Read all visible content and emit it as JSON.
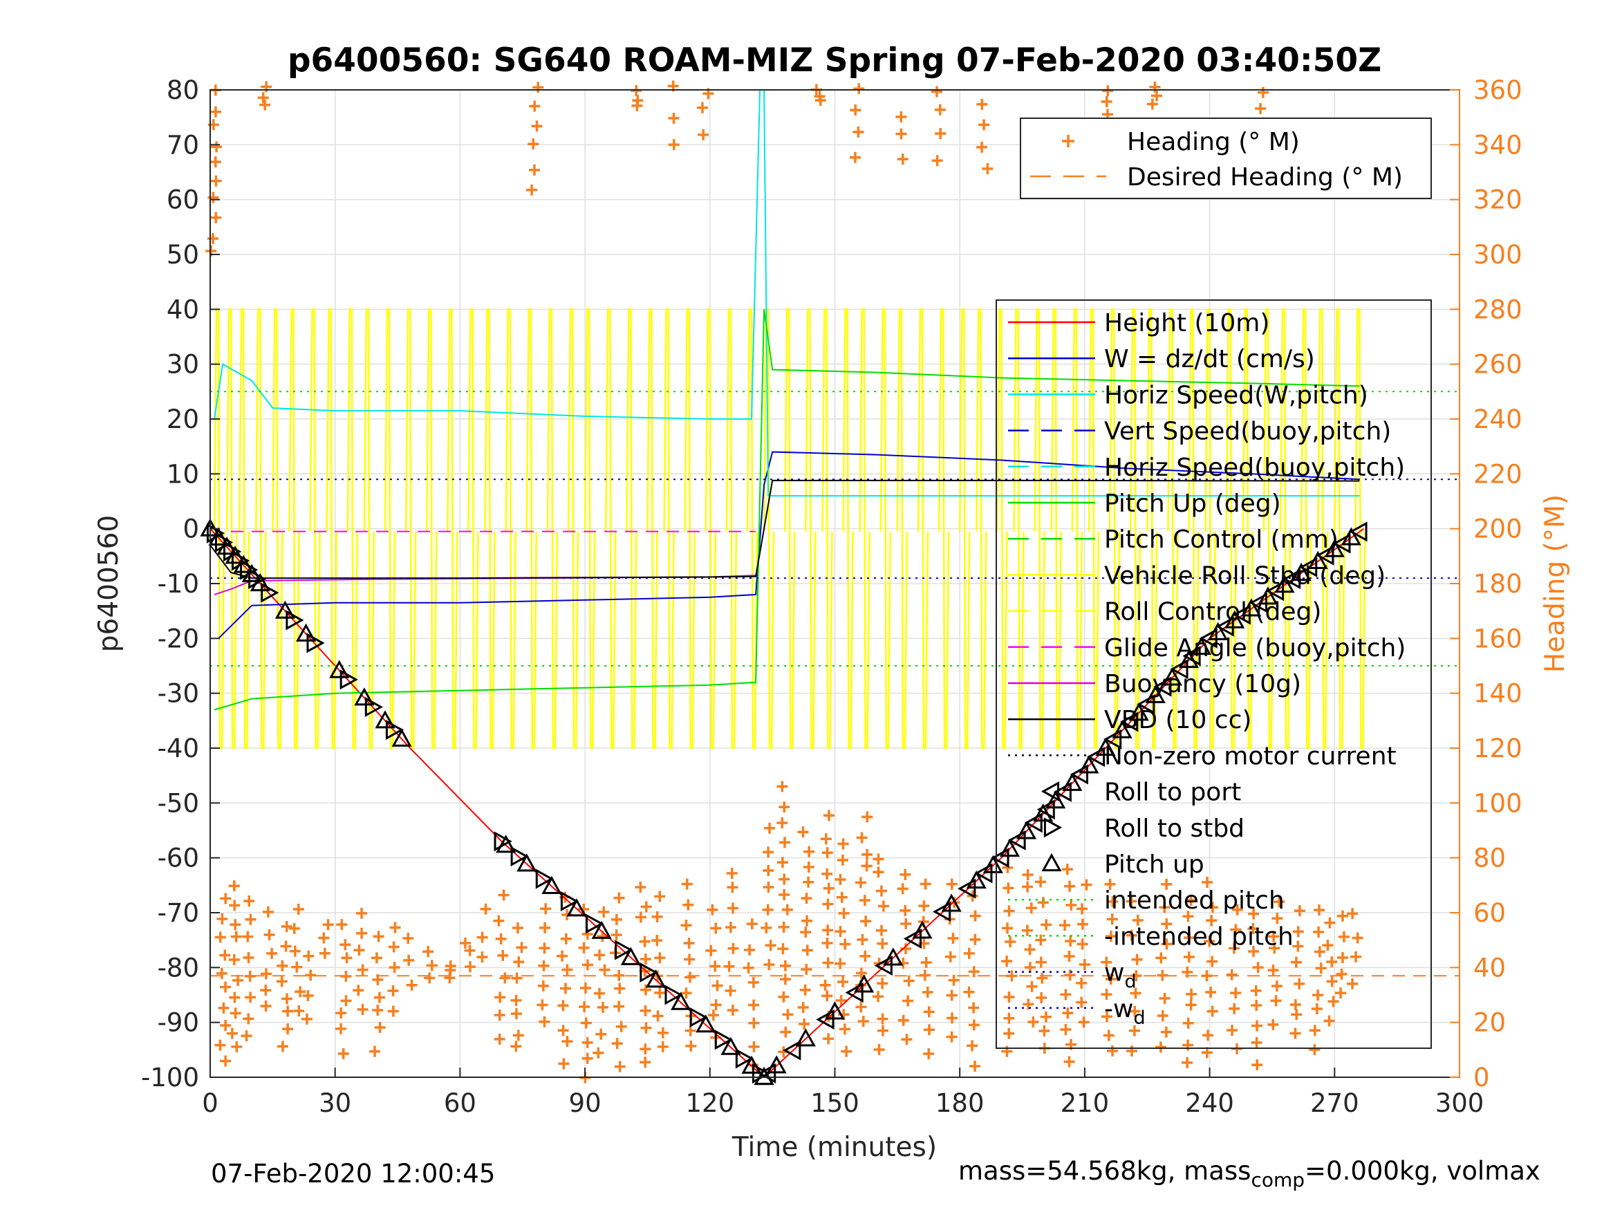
{
  "chart_data": {
    "type": "line",
    "title": "p6400560: SG640 ROAM-MIZ Spring 07-Feb-2020 03:40:50Z",
    "xlabel": "Time (minutes)",
    "ylabel_left": "p6400560",
    "ylabel_right": "Heading (°M)",
    "xlim": [
      0,
      300
    ],
    "ylim_left": [
      -100,
      80
    ],
    "ylim_right": [
      0,
      360
    ],
    "x_ticks": [
      "0",
      "30",
      "60",
      "90",
      "120",
      "150",
      "180",
      "210",
      "240",
      "270",
      "300"
    ],
    "y_ticks_left": [
      "80",
      "70",
      "60",
      "50",
      "40",
      "30",
      "20",
      "10",
      "0",
      "-10",
      "-20",
      "-30",
      "-40",
      "-50",
      "-60",
      "-70",
      "-80",
      "-90",
      "-100"
    ],
    "y_ticks_right": [
      "360",
      "340",
      "320",
      "300",
      "280",
      "260",
      "240",
      "220",
      "200",
      "180",
      "160",
      "140",
      "120",
      "100",
      "80",
      "60",
      "40",
      "20",
      "0"
    ],
    "grid": true,
    "legend_top": {
      "placement": "top-right",
      "entries": [
        {
          "label": "Heading (° M)",
          "color": "#f77f1e",
          "style": "plus"
        },
        {
          "label": "Desired Heading (° M)",
          "color": "#f77f1e",
          "style": "dash"
        }
      ]
    },
    "legend_main": {
      "placement": "right",
      "entries": [
        {
          "label": "Height (10m)",
          "color": "#ff0000",
          "style": "solid"
        },
        {
          "label": "W = dz/dt (cm/s)",
          "color": "#0000c8",
          "style": "solid"
        },
        {
          "label": "Horiz Speed(W,pitch)",
          "color": "#00e6e6",
          "style": "solid"
        },
        {
          "label": "Vert Speed(buoy,pitch)",
          "color": "#0000c8",
          "style": "dash"
        },
        {
          "label": "Horiz Speed(buoy,pitch)",
          "color": "#00e6e6",
          "style": "dash"
        },
        {
          "label": "Pitch Up (deg)",
          "color": "#00dd00",
          "style": "solid"
        },
        {
          "label": "Pitch Control (mm)",
          "color": "#00dd00",
          "style": "dash"
        },
        {
          "label": "Vehicle Roll Stbd (deg)",
          "color": "#ffff00",
          "style": "solid"
        },
        {
          "label": "Roll Control (deg)",
          "color": "#ffff00",
          "style": "dash"
        },
        {
          "label": "Glide Angle (buoy,pitch)",
          "color": "#ff00ff",
          "style": "dash"
        },
        {
          "label": "Buoyancy (10g)",
          "color": "#dd00dd",
          "style": "solid"
        },
        {
          "label": "VBD (10 cc)",
          "color": "#000000",
          "style": "solid"
        },
        {
          "label": "Non-zero motor current",
          "color": "#000000",
          "style": "dot"
        },
        {
          "label": "Roll to port",
          "color": "#000000",
          "style": "tri-left"
        },
        {
          "label": "Roll to stbd",
          "color": "#000000",
          "style": "tri-right"
        },
        {
          "label": "Pitch up",
          "color": "#000000",
          "style": "tri-up"
        },
        {
          "label": "intended pitch",
          "color": "#00dd00",
          "style": "dot"
        },
        {
          "label": "-intended pitch",
          "color": "#00dd00",
          "style": "dot"
        },
        {
          "label": "w",
          "sub": "d",
          "color": "#0000c8",
          "style": "dot"
        },
        {
          "label": "-w",
          "sub": "d",
          "color": "#0000c8",
          "style": "dot"
        }
      ]
    },
    "series": [
      {
        "name": "Height (10m)",
        "color": "#ff0000",
        "x": [
          0,
          48,
          70,
          133,
          190,
          240,
          277
        ],
        "y": [
          0,
          -40,
          -57,
          -100,
          -60,
          -20,
          0
        ]
      },
      {
        "name": "W = dz/dt (cm/s)",
        "color": "#0000c8",
        "x": [
          2,
          10,
          30,
          60,
          90,
          120,
          131,
          133,
          135,
          160,
          190,
          220,
          250,
          276
        ],
        "y": [
          -20,
          -14,
          -13.5,
          -13.5,
          -13,
          -12.5,
          -12,
          8,
          14,
          13.5,
          12.5,
          11,
          10,
          9
        ]
      },
      {
        "name": "Horiz Speed(W,pitch)",
        "color": "#00e6e6",
        "x": [
          1,
          3,
          10,
          15,
          30,
          60,
          90,
          120,
          130,
          132,
          133,
          134,
          140,
          276
        ],
        "y": [
          20,
          30,
          27,
          22,
          21.5,
          21.5,
          20.5,
          20,
          20,
          80,
          80,
          6,
          6,
          6
        ]
      },
      {
        "name": "Pitch Up (deg)",
        "color": "#00dd00",
        "x": [
          1,
          10,
          30,
          60,
          90,
          120,
          131,
          133,
          135,
          160,
          190,
          220,
          250,
          276
        ],
        "y": [
          -33,
          -31,
          -30,
          -29.5,
          -29,
          -28.5,
          -28,
          40,
          29,
          28.5,
          27.5,
          27,
          26.5,
          26
        ]
      },
      {
        "name": "Buoyancy (10g)",
        "color": "#dd00dd",
        "x": [
          1,
          5,
          10,
          40,
          80,
          120,
          131
        ],
        "y": [
          -12,
          -11,
          -9.5,
          -9.2,
          -9,
          -8.8,
          -8.5
        ]
      },
      {
        "name": "VBD (10 cc)",
        "color": "#000000",
        "x": [
          0,
          5,
          10,
          60,
          120,
          131,
          133,
          135,
          200,
          276
        ],
        "y": [
          -3,
          -8,
          -9,
          -9,
          -8.8,
          -8.7,
          0,
          8.8,
          8.8,
          8.7
        ]
      },
      {
        "name": "Glide Angle (buoy,pitch)",
        "color": "#ff00ff",
        "x": [
          5,
          131
        ],
        "y": [
          -0.5,
          -0.5
        ]
      },
      {
        "name": "intended pitch",
        "color": "#00dd00",
        "x": [
          0,
          300
        ],
        "y": [
          25,
          25
        ]
      },
      {
        "name": "-intended pitch",
        "color": "#00dd00",
        "x": [
          0,
          300
        ],
        "y": [
          -25,
          -25
        ]
      },
      {
        "name": "w_d",
        "color": "#0000c8",
        "x": [
          0,
          300
        ],
        "y": [
          9,
          9
        ]
      },
      {
        "name": "-w_d",
        "color": "#0000c8",
        "x": [
          0,
          300
        ],
        "y": [
          -9,
          -9
        ]
      },
      {
        "name": "Desired Heading (° M)",
        "color": "#f77f1e",
        "axis": "right",
        "x": [
          0,
          300
        ],
        "y": [
          37,
          37
        ]
      }
    ],
    "heading_clusters": [
      {
        "t": 1,
        "lo": 300,
        "hi": 360
      },
      {
        "t": 3,
        "lo": 5,
        "hi": 65
      },
      {
        "t": 6,
        "lo": 10,
        "hi": 70
      },
      {
        "t": 9,
        "lo": 15,
        "hi": 65
      },
      {
        "t": 13,
        "lo": 355,
        "hi": 360
      },
      {
        "t": 14,
        "lo": 25,
        "hi": 60
      },
      {
        "t": 18,
        "lo": 10,
        "hi": 55
      },
      {
        "t": 21,
        "lo": 25,
        "hi": 60
      },
      {
        "t": 24,
        "lo": 20,
        "hi": 45
      },
      {
        "t": 28,
        "lo": 45,
        "hi": 55
      },
      {
        "t": 32,
        "lo": 10,
        "hi": 55
      },
      {
        "t": 36,
        "lo": 25,
        "hi": 60
      },
      {
        "t": 40,
        "lo": 10,
        "hi": 50
      },
      {
        "t": 44,
        "lo": 25,
        "hi": 55
      },
      {
        "t": 48,
        "lo": 35,
        "hi": 50
      },
      {
        "t": 53,
        "lo": 37,
        "hi": 45
      },
      {
        "t": 57,
        "lo": 35,
        "hi": 42
      },
      {
        "t": 62,
        "lo": 40,
        "hi": 50
      },
      {
        "t": 66,
        "lo": 45,
        "hi": 60
      },
      {
        "t": 70,
        "lo": 15,
        "hi": 65
      },
      {
        "t": 74,
        "lo": 10,
        "hi": 55
      },
      {
        "t": 78,
        "lo": 325,
        "hi": 360
      },
      {
        "t": 80,
        "lo": 20,
        "hi": 60
      },
      {
        "t": 85,
        "lo": 5,
        "hi": 65
      },
      {
        "t": 90,
        "lo": 0,
        "hi": 60
      },
      {
        "t": 94,
        "lo": 10,
        "hi": 60
      },
      {
        "t": 98,
        "lo": 5,
        "hi": 65
      },
      {
        "t": 102,
        "lo": 355,
        "hi": 360
      },
      {
        "t": 104,
        "lo": 5,
        "hi": 70
      },
      {
        "t": 108,
        "lo": 10,
        "hi": 65
      },
      {
        "t": 111,
        "lo": 340,
        "hi": 360
      },
      {
        "t": 115,
        "lo": 10,
        "hi": 70
      },
      {
        "t": 119,
        "lo": 345,
        "hi": 360
      },
      {
        "t": 121,
        "lo": 15,
        "hi": 60
      },
      {
        "t": 125,
        "lo": 25,
        "hi": 75
      },
      {
        "t": 130,
        "lo": 5,
        "hi": 55
      },
      {
        "t": 134,
        "lo": 40,
        "hi": 90
      },
      {
        "t": 138,
        "lo": 10,
        "hi": 105
      },
      {
        "t": 143,
        "lo": 20,
        "hi": 90
      },
      {
        "t": 146,
        "lo": 355,
        "hi": 360
      },
      {
        "t": 148,
        "lo": 15,
        "hi": 95
      },
      {
        "t": 152,
        "lo": 10,
        "hi": 85
      },
      {
        "t": 155,
        "lo": 335,
        "hi": 360
      },
      {
        "t": 157,
        "lo": 20,
        "hi": 95
      },
      {
        "t": 161,
        "lo": 10,
        "hi": 80
      },
      {
        "t": 166,
        "lo": 335,
        "hi": 350
      },
      {
        "t": 167,
        "lo": 15,
        "hi": 75
      },
      {
        "t": 172,
        "lo": 10,
        "hi": 70
      },
      {
        "t": 175,
        "lo": 335,
        "hi": 360
      },
      {
        "t": 178,
        "lo": 15,
        "hi": 70
      },
      {
        "t": 183,
        "lo": 5,
        "hi": 65
      },
      {
        "t": 186,
        "lo": 330,
        "hi": 355
      },
      {
        "t": 192,
        "lo": 10,
        "hi": 75
      },
      {
        "t": 197,
        "lo": 20,
        "hi": 75
      },
      {
        "t": 200,
        "lo": 10,
        "hi": 70
      },
      {
        "t": 206,
        "lo": 5,
        "hi": 75
      },
      {
        "t": 210,
        "lo": 20,
        "hi": 70
      },
      {
        "t": 215,
        "lo": 350,
        "hi": 360
      },
      {
        "t": 216,
        "lo": 10,
        "hi": 70
      },
      {
        "t": 222,
        "lo": 10,
        "hi": 65
      },
      {
        "t": 227,
        "lo": 355,
        "hi": 360
      },
      {
        "t": 229,
        "lo": 10,
        "hi": 70
      },
      {
        "t": 235,
        "lo": 5,
        "hi": 65
      },
      {
        "t": 240,
        "lo": 10,
        "hi": 70
      },
      {
        "t": 246,
        "lo": 10,
        "hi": 60
      },
      {
        "t": 251,
        "lo": 5,
        "hi": 60
      },
      {
        "t": 253,
        "lo": 330,
        "hi": 360
      },
      {
        "t": 256,
        "lo": 20,
        "hi": 65
      },
      {
        "t": 261,
        "lo": 15,
        "hi": 60
      },
      {
        "t": 266,
        "lo": 10,
        "hi": 60
      },
      {
        "t": 269,
        "lo": 20,
        "hi": 55
      },
      {
        "t": 272,
        "lo": 30,
        "hi": 60
      },
      {
        "t": 275,
        "lo": 35,
        "hi": 60
      }
    ],
    "roll_spikes_x": [
      2,
      5,
      8,
      12,
      16,
      20,
      25,
      29,
      34,
      38,
      43,
      48,
      53,
      58,
      63,
      67,
      72,
      77,
      82,
      87,
      91,
      96,
      101,
      106,
      110,
      115,
      120,
      125,
      130,
      134,
      139,
      144,
      148,
      153,
      157,
      162,
      166,
      171,
      176,
      181,
      185,
      190,
      194,
      199,
      203,
      208,
      212,
      217,
      222,
      226,
      231,
      236,
      240,
      245,
      249,
      254,
      258,
      263,
      267,
      271,
      276
    ],
    "markers": {
      "descent_t": [
        0,
        1,
        2,
        3,
        4,
        5,
        6,
        7,
        8,
        9,
        10,
        11,
        12,
        14,
        18,
        20,
        23,
        25,
        31,
        33,
        37,
        39,
        42,
        44,
        46,
        70,
        71,
        74,
        76,
        80,
        82,
        86,
        88,
        92,
        94,
        99,
        101,
        105,
        107,
        111,
        113,
        117,
        119,
        123,
        125,
        128,
        130,
        132,
        133
      ],
      "ascent_t": [
        133,
        134,
        136,
        140,
        143,
        148,
        150,
        155,
        157,
        162,
        164,
        169,
        171,
        176,
        178,
        182,
        184,
        186,
        188,
        190,
        192,
        194,
        196,
        198,
        200,
        201,
        203,
        205,
        207,
        209,
        211,
        213,
        215,
        217,
        219,
        221,
        223,
        225,
        227,
        229,
        231,
        233,
        235,
        236,
        238,
        240,
        242,
        244,
        246,
        248,
        250,
        252,
        254,
        256,
        258,
        260,
        262,
        264,
        266,
        268,
        270,
        272,
        274,
        276
      ]
    }
  },
  "footer": {
    "date": "07-Feb-2020 12:00:45",
    "mass_text_a": "mass=54.568kg, mass",
    "mass_sub": "comp",
    "mass_text_b": "=0.000kg, volmax"
  }
}
